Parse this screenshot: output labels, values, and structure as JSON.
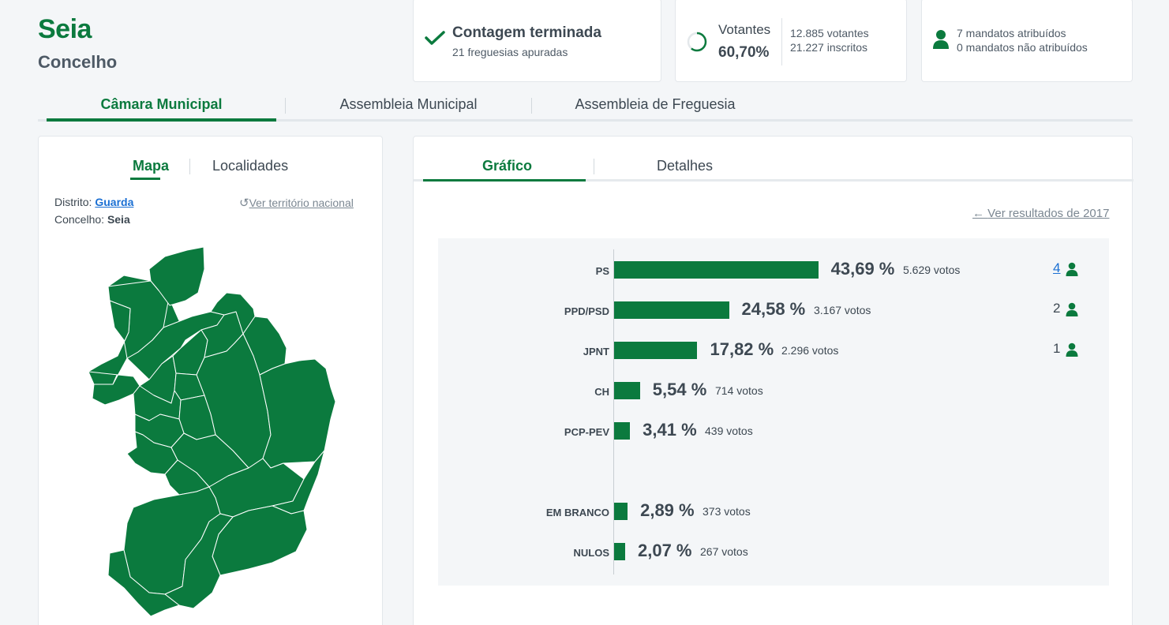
{
  "header": {
    "title": "Seia",
    "subtitle": "Concelho"
  },
  "count_card": {
    "title": "Contagem terminada",
    "subtitle": "21 freguesias apuradas",
    "icon": "check-icon"
  },
  "voters_card": {
    "label": "Votantes",
    "percent": "60,70%",
    "percent_value": 60.7,
    "voters": "12.885 votantes",
    "registered": "21.227 inscritos"
  },
  "mandates_card": {
    "assigned": "7 mandatos atribuídos",
    "unassigned": "0 mandatos não atribuídos"
  },
  "tabs": [
    "Câmara Municipal",
    "Assembleia Municipal",
    "Assembleia de Freguesia"
  ],
  "left_panel": {
    "tabs": [
      "Mapa",
      "Localidades"
    ],
    "district_label": "Distrito:",
    "district_value": "Guarda",
    "county_label": "Concelho:",
    "county_value": "Seia",
    "national_link": "Ver território nacional"
  },
  "right_panel": {
    "tabs": [
      "Gráfico",
      "Detalhes"
    ],
    "previous_link": "Ver resultados de 2017"
  },
  "colors": {
    "accent": "#0b7a3e",
    "link": "#1a6fd3"
  },
  "chart_data": {
    "type": "bar",
    "orientation": "horizontal",
    "categories": [
      "PS",
      "PPD/PSD",
      "JPNT",
      "CH",
      "PCP-PEV",
      "EM BRANCO",
      "NULOS"
    ],
    "values": [
      43.69,
      24.58,
      17.82,
      5.54,
      3.41,
      2.89,
      2.07
    ],
    "value_labels": [
      "43,69 %",
      "24,58 %",
      "17,82 %",
      "5,54 %",
      "3,41 %",
      "2,89 %",
      "2,07 %"
    ],
    "votes": [
      "5.629 votos",
      "3.167 votos",
      "2.296 votos",
      "714 votos",
      "439 votos",
      "373 votos",
      "267 votos"
    ],
    "seats": [
      "4",
      "2",
      "1",
      "",
      "",
      "",
      ""
    ]
  }
}
